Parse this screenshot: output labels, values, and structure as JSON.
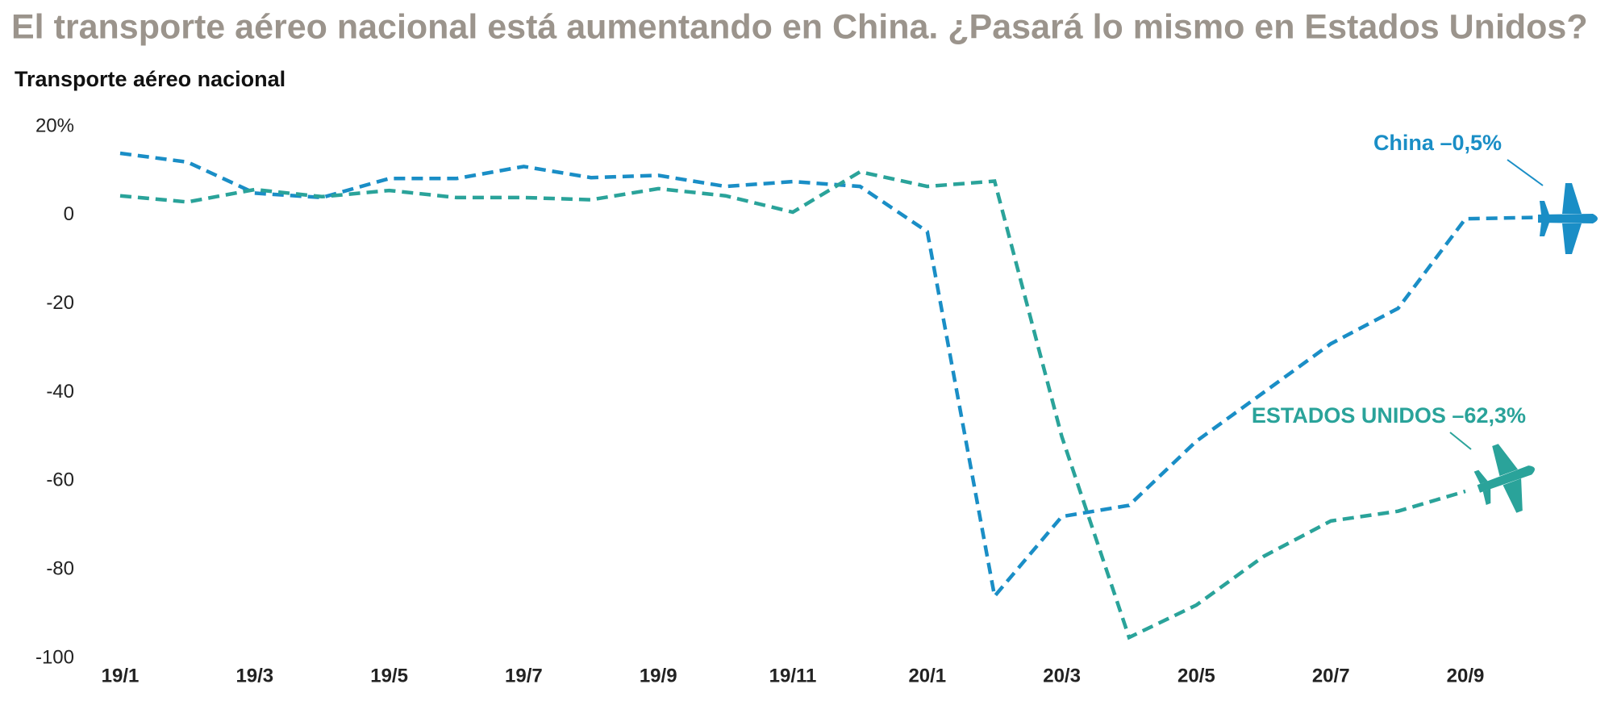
{
  "chart_data": {
    "type": "line",
    "title": "El transporte aéreo nacional está aumentando en China. ¿Pasará lo mismo en Estados Unidos?",
    "subtitle": "Transporte aéreo nacional",
    "categories": [
      "19/1",
      null,
      "19/3",
      null,
      "19/5",
      null,
      "19/7",
      null,
      "19/9",
      null,
      "19/11",
      null,
      "20/1",
      null,
      "20/3",
      null,
      "20/5",
      null,
      "20/7",
      null,
      "20/9",
      null
    ],
    "series": [
      {
        "color": "#1a8ec6",
        "values": [
          14,
          12,
          5,
          4,
          8.3,
          8.3,
          11,
          8.5,
          9,
          6.5,
          7.6,
          6.5,
          -3.7,
          -86,
          -68,
          -65.5,
          -51,
          -40,
          -29,
          -21,
          -0.8,
          -0.5
        ]
      },
      {
        "color": "#2aa39a",
        "values": [
          4.4,
          3,
          5.8,
          4.2,
          5.6,
          4,
          4,
          3.5,
          6,
          4.4,
          0.7,
          9.8,
          6.5,
          7.7,
          -50,
          -95.3,
          -88,
          -77,
          -69,
          -66.8,
          -62.3,
          null
        ]
      }
    ],
    "annotations": [
      "China –0,5%",
      "ESTADOS UNIDOS –62,3%"
    ],
    "ylim": [
      -100,
      20
    ],
    "yticks": [
      {
        "value": 20,
        "label": "20%"
      },
      0,
      -20,
      -40,
      -60,
      -80,
      -100
    ],
    "grid": false
  }
}
